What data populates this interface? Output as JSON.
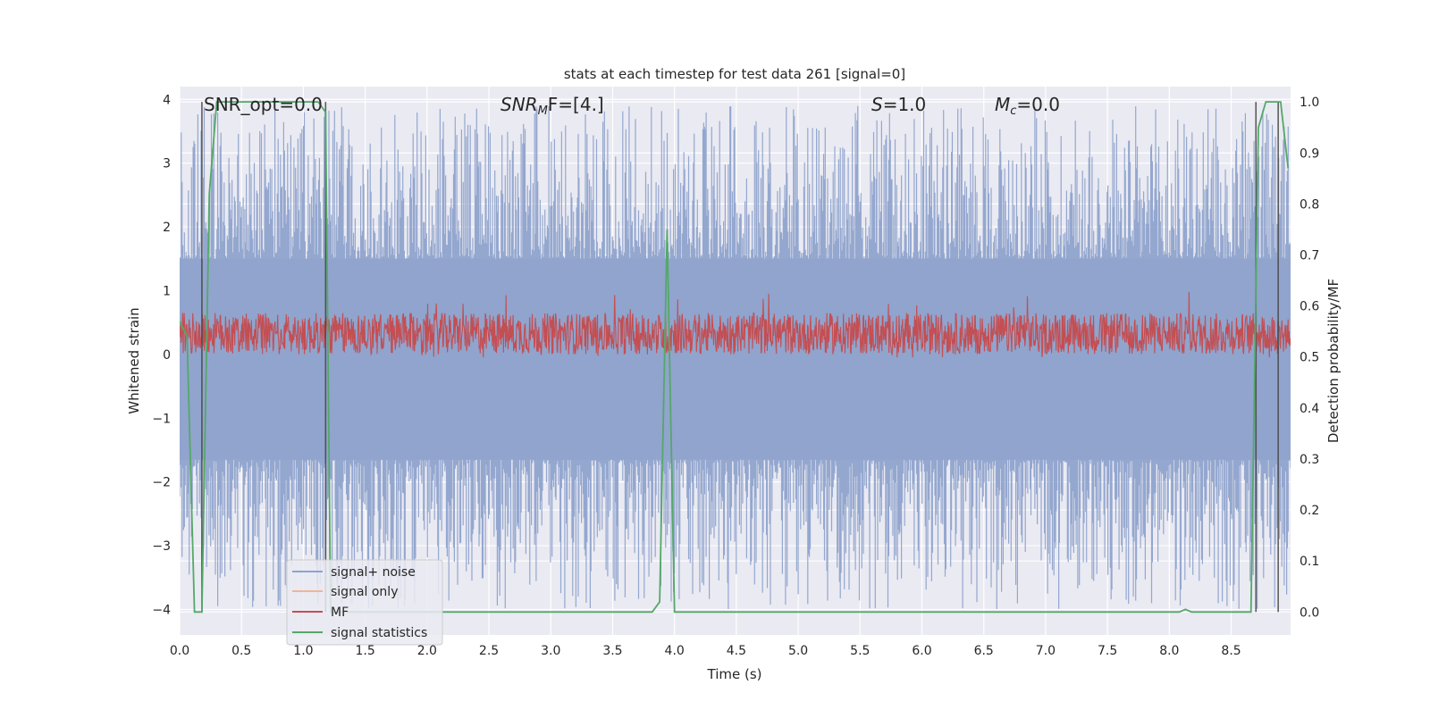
{
  "chart_data": {
    "type": "line",
    "title": "stats at each timestep for test data 261 [signal=0]",
    "xlabel": "Time (s)",
    "ylabel_left": "Whitened strain",
    "ylabel_right": "Detection probability/MF",
    "xlim": [
      0.0,
      8.98
    ],
    "ylim_left": [
      -4.4,
      4.2
    ],
    "ylim_right": [
      -0.045,
      1.03
    ],
    "x_ticks": [
      "0.0",
      "0.5",
      "1.0",
      "1.5",
      "2.0",
      "2.5",
      "3.0",
      "3.5",
      "4.0",
      "4.5",
      "5.0",
      "5.5",
      "6.0",
      "6.5",
      "7.0",
      "7.5",
      "8.0",
      "8.5"
    ],
    "y_ticks_left": [
      "4",
      "3",
      "2",
      "1",
      "0",
      "−1",
      "−2",
      "−3",
      "−4"
    ],
    "y_ticks_right": [
      "1.0",
      "0.9",
      "0.8",
      "0.7",
      "0.6",
      "0.5",
      "0.4",
      "0.3",
      "0.2",
      "0.1",
      "0.0"
    ],
    "grid": true,
    "background_color": "#eaeaf2",
    "annotations": {
      "snr_opt": "SNR_opt=0.0",
      "snr_mf_main": "SNR",
      "snr_mf_sub": "M",
      "snr_mf_tail": "F=[4.]",
      "s_main": "S",
      "s_tail": "=1.0",
      "mc_main": "M",
      "mc_sub": "c",
      "mc_tail": "=0.0"
    },
    "legend": {
      "placement": "lower-left",
      "entries": [
        {
          "label": "signal+ noise",
          "color": "#8fa3cc"
        },
        {
          "label": "signal only",
          "color": "#f0b49a"
        },
        {
          "label": "MF",
          "color": "#c44e52"
        },
        {
          "label": "signal statistics",
          "color": "#55a868"
        }
      ]
    },
    "series": [
      {
        "name": "signal+ noise",
        "axis": "left",
        "color": "#8fa3cc",
        "description_band": [
          -1.65,
          1.5
        ],
        "peak_range": [
          -4.0,
          3.9
        ]
      },
      {
        "name": "MF",
        "axis": "left",
        "color": "#c44e52",
        "band": [
          0.0,
          0.65
        ],
        "peak_range": [
          -0.1,
          1.0
        ]
      },
      {
        "name": "signal statistics",
        "axis": "right",
        "color": "#55a868",
        "x": [
          0.0,
          0.06,
          0.12,
          0.18,
          0.24,
          0.3,
          1.12,
          1.18,
          1.22,
          1.28,
          3.82,
          3.88,
          3.94,
          4.0,
          8.08,
          8.13,
          8.18,
          8.66,
          8.72,
          8.78,
          8.9,
          8.96
        ],
        "y": [
          0.57,
          0.54,
          0.0,
          0.0,
          0.82,
          1.0,
          1.0,
          0.98,
          0.0,
          0.0,
          0.0,
          0.02,
          0.75,
          0.0,
          0.0,
          0.005,
          0.0,
          0.0,
          0.95,
          1.0,
          1.0,
          0.87
        ]
      },
      {
        "name": "marker lines",
        "axis": "right",
        "color": "#444444",
        "x": [
          0.18,
          1.18,
          8.7,
          8.88
        ],
        "y_range": [
          0.0,
          1.0
        ]
      }
    ]
  }
}
